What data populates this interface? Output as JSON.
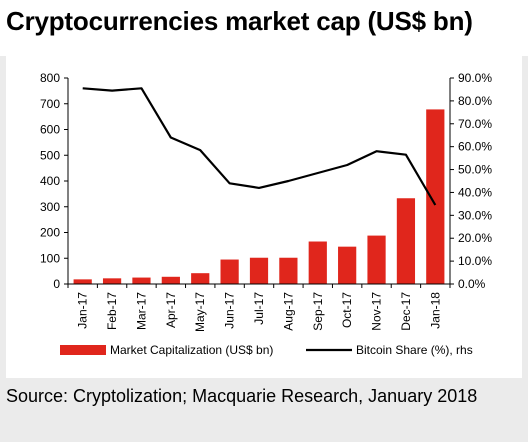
{
  "title": "Cryptocurrencies market cap (US$ bn)",
  "source": "Source: Cryptolization; Macquarie Research, January 2018",
  "colors": {
    "bar": "#e0261c",
    "line": "#000000",
    "background": "#ebebeb"
  },
  "chart_data": {
    "type": "bar",
    "categories": [
      "Jan-17",
      "Feb-17",
      "Mar-17",
      "Apr-17",
      "May-17",
      "Jun-17",
      "Jul-17",
      "Aug-17",
      "Sep-17",
      "Oct-17",
      "Nov-17",
      "Dec-17",
      "Jan-18"
    ],
    "series": [
      {
        "name": "Market Capitalization (US$ bn)",
        "type": "bar",
        "axis": "left",
        "values": [
          18,
          22,
          25,
          28,
          42,
          95,
          102,
          102,
          165,
          145,
          188,
          333,
          678
        ]
      },
      {
        "name": "Bitcoin Share (%), rhs",
        "type": "line",
        "axis": "right",
        "values": [
          85.5,
          84.5,
          85.5,
          64.0,
          58.5,
          44.0,
          42.0,
          45.0,
          48.5,
          52.0,
          58.0,
          56.5,
          34.5
        ]
      }
    ],
    "y_left": {
      "lim": [
        0,
        800
      ],
      "ticks": [
        0,
        100,
        200,
        300,
        400,
        500,
        600,
        700,
        800
      ],
      "tick_labels": [
        "0",
        "100",
        "200",
        "300",
        "400",
        "500",
        "600",
        "700",
        "800"
      ]
    },
    "y_right": {
      "lim": [
        0,
        90
      ],
      "ticks": [
        0,
        10,
        20,
        30,
        40,
        50,
        60,
        70,
        80,
        90
      ],
      "tick_labels": [
        "0.0%",
        "10.0%",
        "20.0%",
        "30.0%",
        "40.0%",
        "50.0%",
        "60.0%",
        "70.0%",
        "80.0%",
        "90.0%"
      ]
    },
    "xlabel": "",
    "ylabel": "",
    "grid": false,
    "legend_position": "bottom"
  }
}
